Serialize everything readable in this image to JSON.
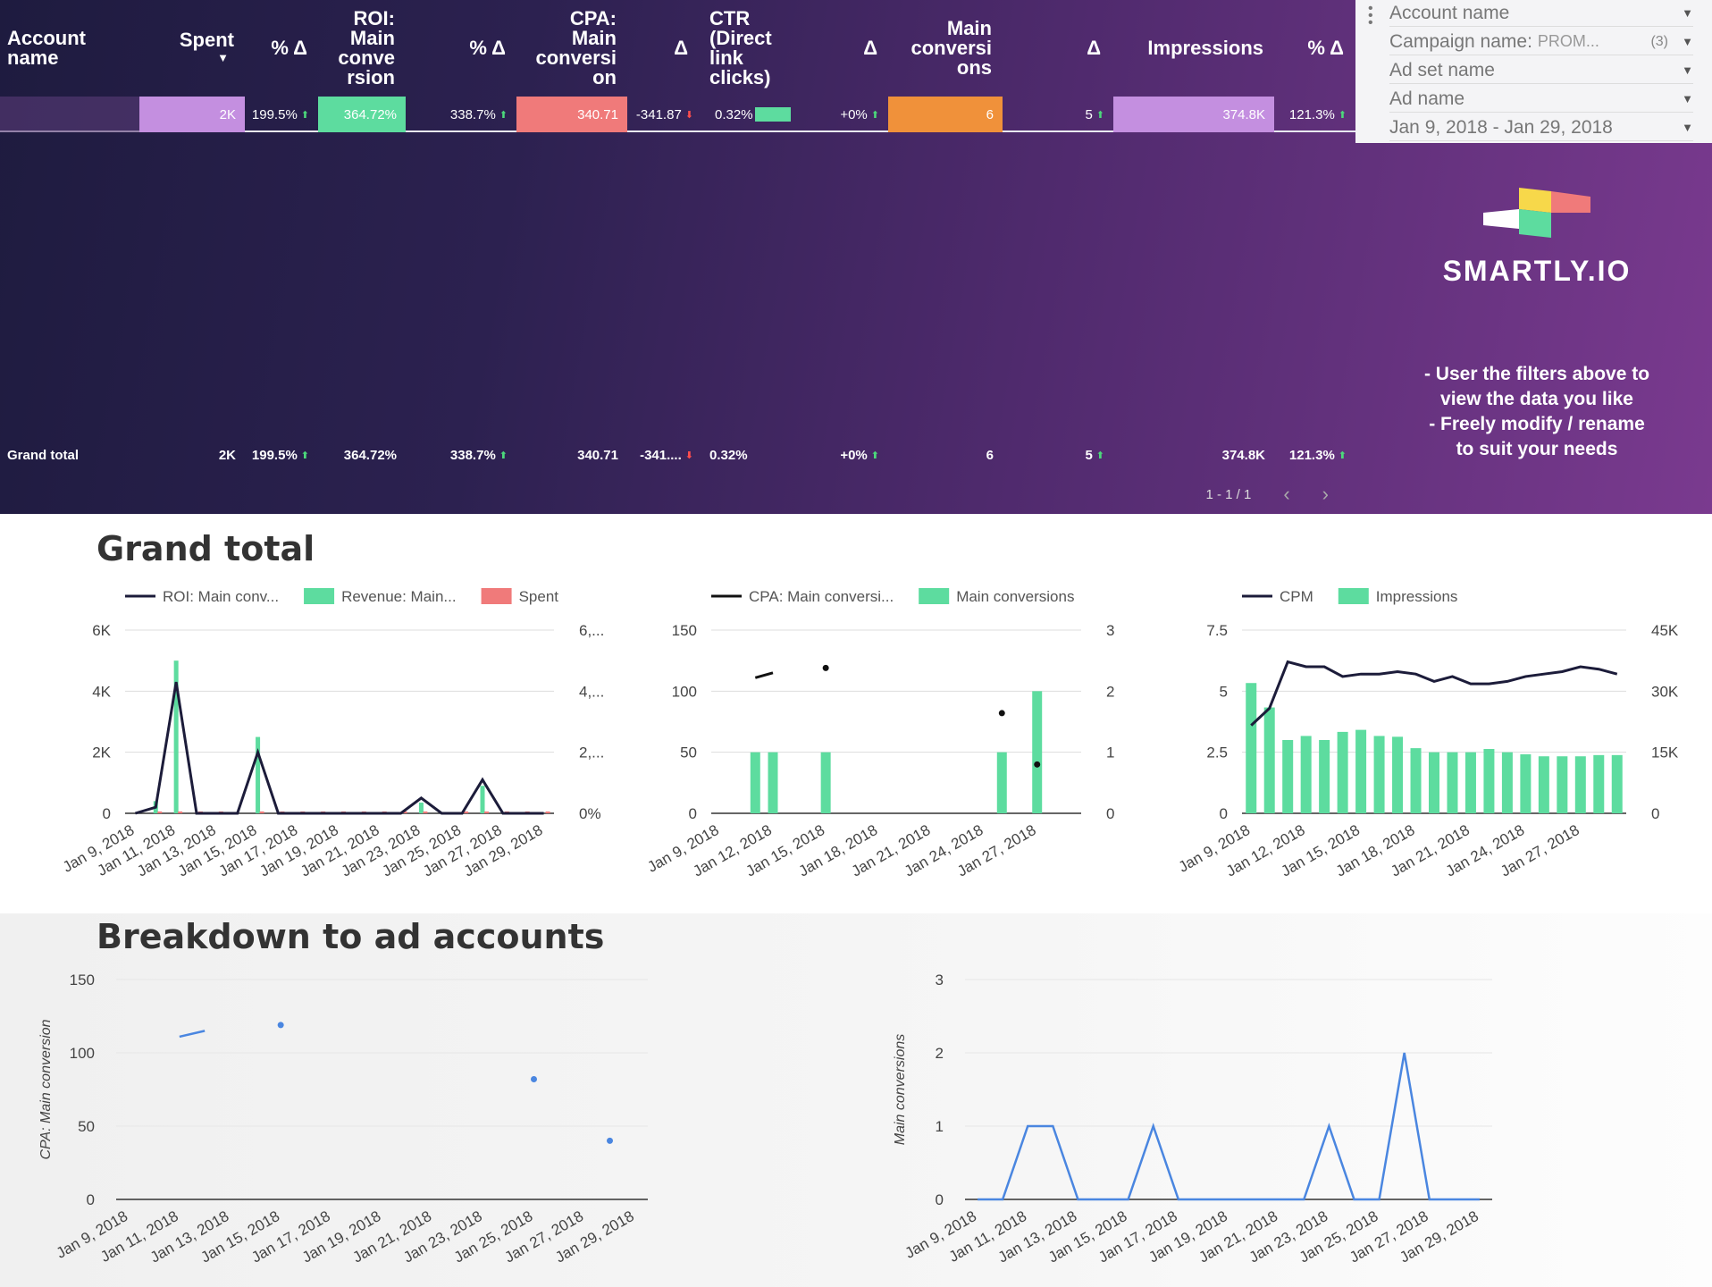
{
  "table": {
    "headers": {
      "account_name": "Account\nname",
      "spent": "Spent",
      "spent_delta": "% Δ",
      "roi": "ROI:\nMain\nconve\nrsion",
      "roi_delta": "% Δ",
      "cpa": "CPA:\nMain\nconversi\non",
      "cpa_delta": "Δ",
      "ctr": "CTR\n(Direct\nlink\nclicks)",
      "ctr_delta": "Δ",
      "main_conversions": "Main\nconversi\nons",
      "main_conversions_delta": "Δ",
      "impressions": "Impressions",
      "impressions_delta": "% Δ"
    },
    "sort_indicator": "▼",
    "row": {
      "account_name": "",
      "spent": "2K",
      "spent_delta": "199.5%",
      "roi": "364.72%",
      "roi_delta": "338.7%",
      "cpa": "340.71",
      "cpa_delta": "-341.87",
      "ctr": "0.32%",
      "ctr_delta": "+0%",
      "main_conversions": "6",
      "main_conversions_delta": "5",
      "impressions": "374.8K",
      "impressions_delta": "121.3%"
    },
    "grand_total": {
      "label": "Grand total",
      "spent": "2K",
      "spent_delta": "199.5%",
      "roi": "364.72%",
      "roi_delta": "338.7%",
      "cpa": "340.71",
      "cpa_delta": "-341....",
      "ctr": "0.32%",
      "ctr_delta": "+0%",
      "main_conversions": "6",
      "main_conversions_delta": "5",
      "impressions": "374.8K",
      "impressions_delta": "121.3%"
    },
    "pagination": "1 - 1 / 1",
    "colors": {
      "spent": "#c48fe0",
      "roi": "#5ddc9f",
      "cpa": "#f07a7a",
      "conv": "#f0913a",
      "impr": "#c48fe0",
      "ctr_bar": "#5ddc9f"
    }
  },
  "filters": {
    "items": [
      {
        "label": "Account name",
        "sub": "",
        "count": ""
      },
      {
        "label": "Campaign name:",
        "sub": "PROM...",
        "count": "(3)"
      },
      {
        "label": "Ad set name",
        "sub": "",
        "count": ""
      },
      {
        "label": "Ad name",
        "sub": "",
        "count": ""
      },
      {
        "label": "Jan 9, 2018 - Jan 29, 2018",
        "sub": "",
        "count": ""
      }
    ]
  },
  "brand": {
    "name": "SMARTLY.IO",
    "note": "- User the filters above to\nview the data you like\n- Freely modify / rename\nto suit your needs"
  },
  "sections": {
    "grand_total": "Grand total",
    "breakdown": "Breakdown to ad accounts"
  },
  "chart_data": [
    {
      "type": "bar",
      "legend": [
        "ROI: Main conv...",
        "Revenue: Main...",
        "Spent"
      ],
      "categories": [
        "Jan 9, 2018",
        "Jan 10, 2018",
        "Jan 11, 2018",
        "Jan 12, 2018",
        "Jan 13, 2018",
        "Jan 14, 2018",
        "Jan 15, 2018",
        "Jan 16, 2018",
        "Jan 17, 2018",
        "Jan 18, 2018",
        "Jan 19, 2018",
        "Jan 20, 2018",
        "Jan 21, 2018",
        "Jan 22, 2018",
        "Jan 23, 2018",
        "Jan 24, 2018",
        "Jan 25, 2018",
        "Jan 26, 2018",
        "Jan 27, 2018",
        "Jan 28, 2018",
        "Jan 29, 2018"
      ],
      "tick_labels": [
        "Jan 9, 2018",
        "Jan 11, 2018",
        "Jan 13, 2018",
        "Jan 15, 2018",
        "Jan 17, 2018",
        "Jan 19, 2018",
        "Jan 21, 2018",
        "Jan 23, 2018",
        "Jan 25, 2018",
        "Jan 27, 2018",
        "Jan 29, 2018"
      ],
      "series": [
        {
          "name": "ROI: Main conv...",
          "kind": "line",
          "values": [
            0,
            200,
            4300,
            0,
            0,
            0,
            2000,
            0,
            0,
            0,
            0,
            0,
            0,
            0,
            500,
            0,
            0,
            1100,
            0,
            0,
            0
          ]
        },
        {
          "name": "Revenue: Main...",
          "kind": "bar",
          "values": [
            0,
            400,
            5000,
            0,
            0,
            0,
            2500,
            0,
            0,
            0,
            0,
            0,
            0,
            0,
            350,
            0,
            0,
            900,
            0,
            0,
            0
          ]
        },
        {
          "name": "Spent",
          "kind": "bar",
          "values": [
            0,
            60,
            60,
            60,
            60,
            0,
            60,
            60,
            60,
            60,
            60,
            60,
            60,
            60,
            60,
            0,
            60,
            60,
            60,
            60,
            60
          ]
        }
      ],
      "ylim_left": [
        0,
        6000
      ],
      "yticks_left": [
        "0",
        "2K",
        "4K",
        "6K"
      ],
      "yticks_right": [
        "0%",
        "2,...",
        "4,...",
        "6,..."
      ],
      "colors": {
        "line": "#1c1c3a",
        "bar": "#5ddc9f",
        "spent": "#f07a7a"
      }
    },
    {
      "type": "bar",
      "legend": [
        "CPA: Main conversi...",
        "Main conversions"
      ],
      "categories": [
        "Jan 9, 2018",
        "Jan 10, 2018",
        "Jan 11, 2018",
        "Jan 12, 2018",
        "Jan 13, 2018",
        "Jan 14, 2018",
        "Jan 15, 2018",
        "Jan 16, 2018",
        "Jan 17, 2018",
        "Jan 18, 2018",
        "Jan 19, 2018",
        "Jan 20, 2018",
        "Jan 21, 2018",
        "Jan 22, 2018",
        "Jan 23, 2018",
        "Jan 24, 2018",
        "Jan 25, 2018",
        "Jan 26, 2018",
        "Jan 27, 2018",
        "Jan 28, 2018",
        "Jan 29, 2018"
      ],
      "tick_labels": [
        "Jan 9, 2018",
        "Jan 12, 2018",
        "Jan 15, 2018",
        "Jan 18, 2018",
        "Jan 21, 2018",
        "Jan 24, 2018",
        "Jan 27, 2018"
      ],
      "series": [
        {
          "name": "CPA: Main conversi...",
          "kind": "line",
          "values": [
            null,
            null,
            111,
            115,
            null,
            null,
            119,
            null,
            null,
            null,
            null,
            null,
            null,
            null,
            null,
            null,
            82,
            null,
            null,
            null,
            null
          ],
          "segments": [
            [
              2,
              3
            ]
          ]
        },
        {
          "name": "Main conversions",
          "kind": "bar",
          "values": [
            0,
            0,
            1,
            1,
            0,
            0,
            1,
            0,
            0,
            0,
            0,
            0,
            0,
            0,
            0,
            0,
            1,
            0,
            2,
            0,
            0
          ]
        }
      ],
      "extra_points": [
        {
          "x": 18,
          "y": 40
        }
      ],
      "ylim_left": [
        0,
        150
      ],
      "yticks_left": [
        "0",
        "50",
        "100",
        "150"
      ],
      "ylim_right": [
        0,
        3
      ],
      "yticks_right": [
        "0",
        "1",
        "2",
        "3"
      ],
      "colors": {
        "line": "#111",
        "bar": "#5ddc9f"
      }
    },
    {
      "type": "bar",
      "legend": [
        "CPM",
        "Impressions"
      ],
      "categories": [
        "Jan 9, 2018",
        "Jan 10, 2018",
        "Jan 11, 2018",
        "Jan 12, 2018",
        "Jan 13, 2018",
        "Jan 14, 2018",
        "Jan 15, 2018",
        "Jan 16, 2018",
        "Jan 17, 2018",
        "Jan 18, 2018",
        "Jan 19, 2018",
        "Jan 20, 2018",
        "Jan 21, 2018",
        "Jan 22, 2018",
        "Jan 23, 2018",
        "Jan 24, 2018",
        "Jan 25, 2018",
        "Jan 26, 2018",
        "Jan 27, 2018",
        "Jan 28, 2018",
        "Jan 29, 2018"
      ],
      "tick_labels": [
        "Jan 9, 2018",
        "Jan 12, 2018",
        "Jan 15, 2018",
        "Jan 18, 2018",
        "Jan 21, 2018",
        "Jan 24, 2018",
        "Jan 27, 2018"
      ],
      "series": [
        {
          "name": "CPM",
          "kind": "line",
          "values": [
            3.6,
            4.3,
            6.2,
            6.0,
            6.0,
            5.6,
            5.7,
            5.7,
            5.8,
            5.7,
            5.4,
            5.6,
            5.3,
            5.3,
            5.4,
            5.6,
            5.7,
            5.8,
            6.0,
            5.9,
            5.7
          ]
        },
        {
          "name": "Impressions",
          "kind": "bar",
          "values": [
            32000,
            26000,
            18000,
            19000,
            18000,
            20000,
            20500,
            19000,
            18800,
            16000,
            15000,
            15000,
            15000,
            15800,
            15000,
            14500,
            14000,
            14000,
            14000,
            14300,
            14300
          ]
        }
      ],
      "ylim_left": [
        0,
        7.5
      ],
      "yticks_left": [
        "0",
        "2.5",
        "5",
        "7.5"
      ],
      "ylim_right": [
        0,
        45000
      ],
      "yticks_right": [
        "0",
        "15K",
        "30K",
        "45K"
      ],
      "colors": {
        "line": "#1c1c3a",
        "bar": "#5ddc9f"
      }
    },
    {
      "type": "line",
      "ylabel": "CPA: Main conversion",
      "categories": [
        "Jan 9, 2018",
        "Jan 10, 2018",
        "Jan 11, 2018",
        "Jan 12, 2018",
        "Jan 13, 2018",
        "Jan 14, 2018",
        "Jan 15, 2018",
        "Jan 16, 2018",
        "Jan 17, 2018",
        "Jan 18, 2018",
        "Jan 19, 2018",
        "Jan 20, 2018",
        "Jan 21, 2018",
        "Jan 22, 2018",
        "Jan 23, 2018",
        "Jan 24, 2018",
        "Jan 25, 2018",
        "Jan 26, 2018",
        "Jan 27, 2018",
        "Jan 28, 2018",
        "Jan 29, 2018"
      ],
      "tick_labels": [
        "Jan 9, 2018",
        "Jan 11, 2018",
        "Jan 13, 2018",
        "Jan 15, 2018",
        "Jan 17, 2018",
        "Jan 19, 2018",
        "Jan 21, 2018",
        "Jan 23, 2018",
        "Jan 25, 2018",
        "Jan 27, 2018",
        "Jan 29, 2018"
      ],
      "series": [
        {
          "name": "",
          "values": [
            null,
            null,
            111,
            115,
            null,
            null,
            119,
            null,
            null,
            null,
            null,
            null,
            null,
            null,
            null,
            null,
            82,
            null,
            null,
            40,
            null
          ],
          "segments": [
            [
              2,
              3
            ]
          ]
        }
      ],
      "ylim": [
        0,
        150
      ],
      "yticks": [
        "0",
        "50",
        "100",
        "150"
      ],
      "colors": {
        "line": "#4a86e0"
      }
    },
    {
      "type": "line",
      "ylabel": "Main conversions",
      "categories": [
        "Jan 9, 2018",
        "Jan 10, 2018",
        "Jan 11, 2018",
        "Jan 12, 2018",
        "Jan 13, 2018",
        "Jan 14, 2018",
        "Jan 15, 2018",
        "Jan 16, 2018",
        "Jan 17, 2018",
        "Jan 18, 2018",
        "Jan 19, 2018",
        "Jan 20, 2018",
        "Jan 21, 2018",
        "Jan 22, 2018",
        "Jan 23, 2018",
        "Jan 24, 2018",
        "Jan 25, 2018",
        "Jan 26, 2018",
        "Jan 27, 2018",
        "Jan 28, 2018",
        "Jan 29, 2018"
      ],
      "tick_labels": [
        "Jan 9, 2018",
        "Jan 11, 2018",
        "Jan 13, 2018",
        "Jan 15, 2018",
        "Jan 17, 2018",
        "Jan 19, 2018",
        "Jan 21, 2018",
        "Jan 23, 2018",
        "Jan 25, 2018",
        "Jan 27, 2018",
        "Jan 29, 2018"
      ],
      "series": [
        {
          "name": "",
          "values": [
            0,
            0,
            1,
            1,
            0,
            0,
            0,
            1,
            0,
            0,
            0,
            0,
            0,
            0,
            1,
            0,
            0,
            2,
            0,
            0,
            0
          ]
        }
      ],
      "ylim": [
        0,
        3
      ],
      "yticks": [
        "0",
        "1",
        "2",
        "3"
      ],
      "colors": {
        "line": "#4a86e0"
      }
    }
  ]
}
